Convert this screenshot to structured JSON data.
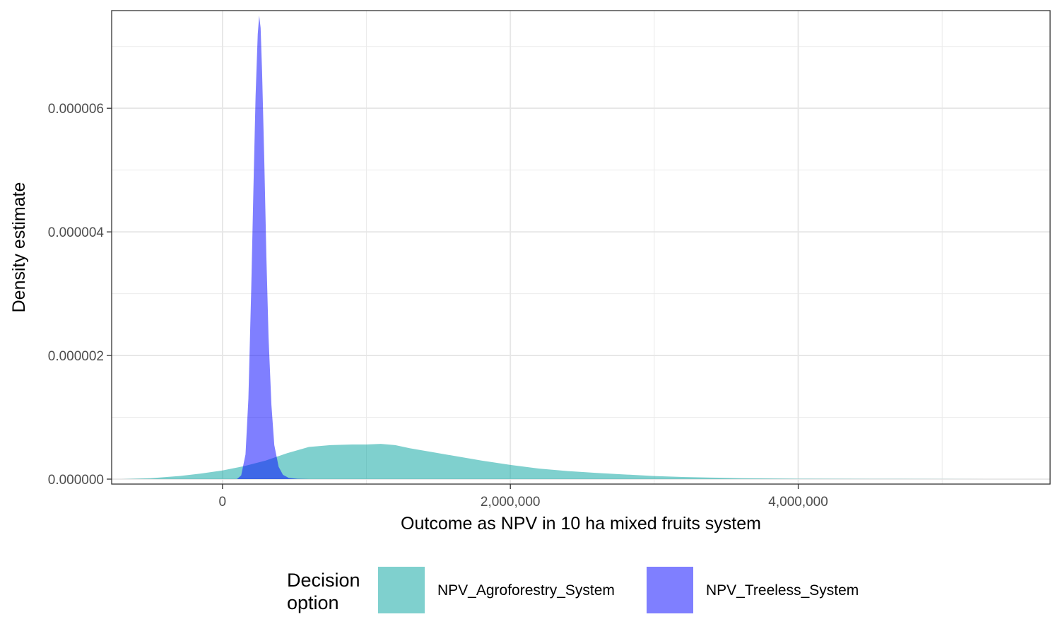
{
  "chart_data": {
    "type": "area",
    "xlabel": "Outcome as NPV in 10 ha mixed fruits system",
    "ylabel": "Density estimate",
    "xlim": [
      -770000,
      5750000
    ],
    "ylim": [
      -8e-08,
      7.58e-06
    ],
    "x_ticks": [
      0,
      2000000,
      4000000
    ],
    "x_tick_labels": [
      "0",
      "2,000,000",
      "4,000,000"
    ],
    "y_ticks": [
      0,
      2e-06,
      4e-06,
      6e-06
    ],
    "y_tick_labels": [
      "0.000000",
      "0.000002",
      "0.000004",
      "0.000006"
    ],
    "grid": true,
    "legend": {
      "title_lines": [
        "Decision",
        "option"
      ],
      "position": "bottom"
    },
    "series": [
      {
        "name": "NPV_Agroforestry_System",
        "color": "#00A19D",
        "opacity": 0.5,
        "x": [
          -700000,
          -500000,
          -300000,
          -150000,
          0,
          150000,
          300000,
          450000,
          600000,
          750000,
          900000,
          1000000,
          1100000,
          1200000,
          1300000,
          1450000,
          1600000,
          1800000,
          2000000,
          2200000,
          2400000,
          2600000,
          2800000,
          3000000,
          3200000,
          3400000,
          3600000,
          3800000,
          4000000,
          4500000,
          5000000,
          5500000
        ],
        "y": [
          0.0,
          1.5e-08,
          5e-08,
          9e-08,
          1.4e-07,
          2.1e-07,
          3e-07,
          4.2e-07,
          5.2e-07,
          5.5e-07,
          5.6e-07,
          5.6e-07,
          5.7e-07,
          5.5e-07,
          5e-07,
          4.4e-07,
          3.8e-07,
          3e-07,
          2.3e-07,
          1.7e-07,
          1.3e-07,
          1e-07,
          7.5e-08,
          5e-08,
          3.5e-08,
          2.5e-08,
          1.5e-08,
          1e-08,
          6e-09,
          3e-09,
          1e-09,
          0.0
        ]
      },
      {
        "name": "NPV_Treeless_System",
        "color": "#0000FF",
        "opacity": 0.5,
        "x": [
          100000,
          130000,
          160000,
          180000,
          200000,
          215000,
          230000,
          245000,
          255000,
          265000,
          275000,
          290000,
          305000,
          320000,
          340000,
          360000,
          390000,
          420000,
          460000,
          520000,
          600000
        ],
        "y": [
          0.0,
          6e-08,
          4e-07,
          1.3e-06,
          3.1e-06,
          4.7e-06,
          6.2e-06,
          7.2e-06,
          7.5e-06,
          7.3e-06,
          6.6e-06,
          5.2e-06,
          3.6e-06,
          2.3e-06,
          1.2e-06,
          5.5e-07,
          2e-07,
          7e-08,
          2e-08,
          5e-09,
          0.0
        ]
      }
    ]
  }
}
